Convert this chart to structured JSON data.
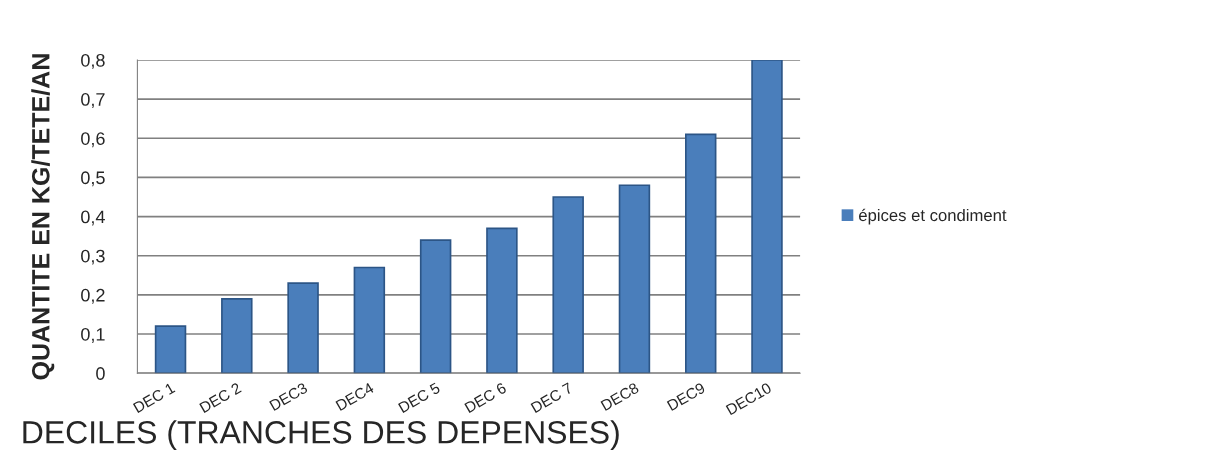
{
  "chart_data": {
    "type": "bar",
    "xlabel": "DECILES (TRANCHES DES DEPENSES)",
    "ylabel": "QUANTITE EN KG/TETE/AN",
    "categories": [
      "DEC 1",
      "DEC 2",
      "DEC3",
      "DEC4",
      "DEC 5",
      "DEC 6",
      "DEC 7",
      "DEC8",
      "DEC9",
      "DEC10"
    ],
    "series": [
      {
        "name": "épices et condiment",
        "color": "#4a7ebb",
        "values": [
          0.12,
          0.19,
          0.23,
          0.27,
          0.34,
          0.37,
          0.45,
          0.48,
          0.61,
          0.8
        ]
      }
    ],
    "ylim": [
      0,
      0.8
    ],
    "yticks": [
      0,
      {
        "value": 0.1,
        "label": "0,1"
      },
      {
        "value": 0.2,
        "label": "0,2"
      },
      {
        "value": 0.3,
        "label": "0,3"
      },
      {
        "value": 0.4,
        "label": "0,4"
      },
      {
        "value": 0.5,
        "label": "0,5"
      },
      {
        "value": 0.6,
        "label": "0,6"
      },
      {
        "value": 0.7,
        "label": "0,7"
      },
      {
        "value": 0.8,
        "label": "0,8"
      }
    ],
    "grid": "y",
    "legend": "right"
  }
}
